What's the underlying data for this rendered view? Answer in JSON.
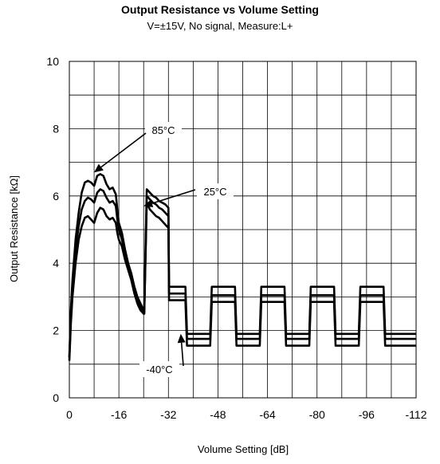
{
  "chart_data": {
    "type": "line",
    "title": "Output Resistance vs Volume Setting",
    "subtitle": "V=±15V, No signal, Measure:L+",
    "xlabel": "Volume Setting [dB]",
    "ylabel": "Output Resistance [kΩ]",
    "xlim": [
      0,
      -112
    ],
    "ylim": [
      0,
      10
    ],
    "x_ticks": [
      "0",
      "-16",
      "-32",
      "-48",
      "-64",
      "-80",
      "-96",
      "-112"
    ],
    "y_ticks": [
      "0",
      "2",
      "4",
      "6",
      "8",
      "10"
    ],
    "grid": true,
    "annotations": [
      {
        "text": "85°C",
        "points_to_x": -8,
        "points_to_y": 6.7
      },
      {
        "text": "25°C",
        "points_to_x": -24,
        "points_to_y": 5.7
      },
      {
        "text": "-40°C",
        "points_to_x": -36,
        "points_to_y": 1.9
      }
    ],
    "series": [
      {
        "name": "85°C",
        "x": [
          0,
          -0.5,
          -1,
          -2,
          -3,
          -4,
          -5,
          -6,
          -7,
          -8,
          -9,
          -10,
          -11,
          -12,
          -13,
          -14,
          -15,
          -15.5,
          -16,
          -17,
          -18,
          -19,
          -20,
          -21,
          -22,
          -23,
          -24,
          -24.2,
          -25,
          -26,
          -27,
          -28,
          -29,
          -30,
          -31,
          -32,
          -32.2,
          -33,
          -34,
          -35,
          -36,
          -37,
          -37.5,
          -38,
          -39,
          -40,
          -41,
          -42,
          -43,
          -44,
          -45,
          -45.5,
          -46,
          -47,
          -48,
          -49,
          -50,
          -51,
          -52,
          -53,
          -53.5,
          -54,
          -55,
          -56,
          -57,
          -58,
          -59,
          -60,
          -61,
          -61.5,
          -62,
          -63,
          -64,
          -65,
          -66,
          -67,
          -68,
          -69,
          -69.5,
          -70,
          -71,
          -72,
          -73,
          -74,
          -75,
          -76,
          -77,
          -77.5,
          -78,
          -79,
          -80,
          -81,
          -82,
          -83,
          -84,
          -85,
          -85.5,
          -86,
          -87,
          -88,
          -89,
          -90,
          -91,
          -92,
          -93,
          -93.5,
          -94,
          -95,
          -96,
          -97,
          -98,
          -99,
          -100,
          -101,
          -101.5,
          -102,
          -103,
          -104,
          -105,
          -106,
          -107,
          -108,
          -109,
          -109.5,
          -110,
          -111,
          -112
        ],
        "values": [
          1.2,
          2.6,
          3.5,
          4.7,
          5.5,
          6.1,
          6.4,
          6.45,
          6.4,
          6.3,
          6.6,
          6.65,
          6.6,
          6.35,
          6.2,
          6.25,
          6.05,
          5.6,
          5.2,
          4.9,
          4.4,
          4.0,
          3.7,
          3.3,
          3.0,
          2.8,
          2.6,
          2.65,
          6.2,
          6.1,
          6.0,
          5.95,
          5.85,
          5.8,
          5.75,
          5.65,
          3.3,
          3.3,
          3.3,
          3.3,
          3.3,
          3.3,
          3.3,
          1.9,
          1.9,
          1.9,
          1.9,
          1.9,
          1.9,
          1.9,
          1.9,
          1.9,
          3.3,
          3.3,
          3.3,
          3.3,
          3.3,
          3.3,
          3.3,
          3.3,
          3.3,
          1.9,
          1.9,
          1.9,
          1.9,
          1.9,
          1.9,
          1.9,
          1.9,
          1.9,
          3.3,
          3.3,
          3.3,
          3.3,
          3.3,
          3.3,
          3.3,
          3.3,
          3.3,
          1.9,
          1.9,
          1.9,
          1.9,
          1.9,
          1.9,
          1.9,
          1.9,
          1.9,
          3.3,
          3.3,
          3.3,
          3.3,
          3.3,
          3.3,
          3.3,
          3.3,
          3.3,
          1.9,
          1.9,
          1.9,
          1.9,
          1.9,
          1.9,
          1.9,
          1.9,
          1.9,
          3.3,
          3.3,
          3.3,
          3.3,
          3.3,
          3.3,
          3.3,
          3.3,
          3.3,
          1.9,
          1.9,
          1.9,
          1.9,
          1.9,
          1.9,
          1.9,
          1.9,
          1.9,
          1.9,
          1.9,
          1.9
        ]
      },
      {
        "name": "25°C",
        "x": [
          0,
          -0.5,
          -1,
          -2,
          -3,
          -4,
          -5,
          -6,
          -7,
          -8,
          -9,
          -10,
          -11,
          -12,
          -13,
          -14,
          -15,
          -15.5,
          -16,
          -17,
          -18,
          -19,
          -20,
          -21,
          -22,
          -23,
          -24,
          -24.2,
          -25,
          -26,
          -27,
          -28,
          -29,
          -30,
          -31,
          -32,
          -32.2,
          -33,
          -34,
          -35,
          -36,
          -37,
          -37.5,
          -38,
          -39,
          -40,
          -41,
          -42,
          -43,
          -44,
          -45,
          -45.5,
          -46,
          -47,
          -48,
          -49,
          -50,
          -51,
          -52,
          -53,
          -53.5,
          -54,
          -55,
          -56,
          -57,
          -58,
          -59,
          -60,
          -61,
          -61.5,
          -62,
          -63,
          -64,
          -65,
          -66,
          -67,
          -68,
          -69,
          -69.5,
          -70,
          -71,
          -72,
          -73,
          -74,
          -75,
          -76,
          -77,
          -77.5,
          -78,
          -79,
          -80,
          -81,
          -82,
          -83,
          -84,
          -85,
          -85.5,
          -86,
          -87,
          -88,
          -89,
          -90,
          -91,
          -92,
          -93,
          -93.5,
          -94,
          -95,
          -96,
          -97,
          -98,
          -99,
          -100,
          -101,
          -101.5,
          -102,
          -103,
          -104,
          -105,
          -106,
          -107,
          -108,
          -109,
          -109.5,
          -110,
          -111,
          -112
        ],
        "values": [
          1.2,
          2.4,
          3.3,
          4.4,
          5.1,
          5.6,
          5.85,
          5.95,
          5.9,
          5.8,
          6.1,
          6.2,
          6.15,
          5.95,
          5.8,
          5.85,
          5.7,
          5.3,
          5.0,
          4.7,
          4.3,
          3.9,
          3.6,
          3.2,
          2.9,
          2.7,
          2.5,
          2.55,
          6.0,
          5.9,
          5.8,
          5.75,
          5.65,
          5.6,
          5.5,
          5.4,
          3.1,
          3.1,
          3.1,
          3.1,
          3.1,
          3.1,
          3.1,
          1.75,
          1.75,
          1.75,
          1.75,
          1.75,
          1.75,
          1.75,
          1.75,
          1.75,
          3.05,
          3.05,
          3.05,
          3.05,
          3.05,
          3.05,
          3.05,
          3.05,
          3.05,
          1.75,
          1.75,
          1.75,
          1.75,
          1.75,
          1.75,
          1.75,
          1.75,
          1.75,
          3.05,
          3.05,
          3.05,
          3.05,
          3.05,
          3.05,
          3.05,
          3.05,
          3.05,
          1.75,
          1.75,
          1.75,
          1.75,
          1.75,
          1.75,
          1.75,
          1.75,
          1.75,
          3.05,
          3.05,
          3.05,
          3.05,
          3.05,
          3.05,
          3.05,
          3.05,
          3.05,
          1.75,
          1.75,
          1.75,
          1.75,
          1.75,
          1.75,
          1.75,
          1.75,
          1.75,
          3.05,
          3.05,
          3.05,
          3.05,
          3.05,
          3.05,
          3.05,
          3.05,
          3.05,
          1.75,
          1.75,
          1.75,
          1.75,
          1.75,
          1.75,
          1.75,
          1.75,
          1.75,
          1.75,
          1.75,
          1.75
        ]
      },
      {
        "name": "-40°C",
        "x": [
          0,
          -0.5,
          -1,
          -2,
          -3,
          -4,
          -5,
          -6,
          -7,
          -8,
          -9,
          -10,
          -11,
          -12,
          -13,
          -14,
          -15,
          -15.5,
          -16,
          -17,
          -18,
          -19,
          -20,
          -21,
          -22,
          -23,
          -24,
          -24.2,
          -25,
          -26,
          -27,
          -28,
          -29,
          -30,
          -31,
          -32,
          -32.2,
          -33,
          -34,
          -35,
          -36,
          -37,
          -37.5,
          -38,
          -39,
          -40,
          -41,
          -42,
          -43,
          -44,
          -45,
          -45.5,
          -46,
          -47,
          -48,
          -49,
          -50,
          -51,
          -52,
          -53,
          -53.5,
          -54,
          -55,
          -56,
          -57,
          -58,
          -59,
          -60,
          -61,
          -61.5,
          -62,
          -63,
          -64,
          -65,
          -66,
          -67,
          -68,
          -69,
          -69.5,
          -70,
          -71,
          -72,
          -73,
          -74,
          -75,
          -76,
          -77,
          -77.5,
          -78,
          -79,
          -80,
          -81,
          -82,
          -83,
          -84,
          -85,
          -85.5,
          -86,
          -87,
          -88,
          -89,
          -90,
          -91,
          -92,
          -93,
          -93.5,
          -94,
          -95,
          -96,
          -97,
          -98,
          -99,
          -100,
          -101,
          -101.5,
          -102,
          -103,
          -104,
          -105,
          -106,
          -107,
          -108,
          -109,
          -109.5,
          -110,
          -111,
          -112
        ],
        "values": [
          1.1,
          2.2,
          3.0,
          4.0,
          4.7,
          5.1,
          5.35,
          5.4,
          5.3,
          5.2,
          5.5,
          5.65,
          5.6,
          5.4,
          5.3,
          5.35,
          5.2,
          4.9,
          4.7,
          4.5,
          4.1,
          3.8,
          3.5,
          3.1,
          2.8,
          2.6,
          2.5,
          2.5,
          5.8,
          5.6,
          5.5,
          5.4,
          5.35,
          5.25,
          5.15,
          5.05,
          2.9,
          2.9,
          2.9,
          2.9,
          2.9,
          2.9,
          2.9,
          1.55,
          1.55,
          1.55,
          1.55,
          1.55,
          1.55,
          1.55,
          1.55,
          1.55,
          2.85,
          2.85,
          2.85,
          2.85,
          2.85,
          2.85,
          2.85,
          2.85,
          2.85,
          1.55,
          1.55,
          1.55,
          1.55,
          1.55,
          1.55,
          1.55,
          1.55,
          1.55,
          2.85,
          2.85,
          2.85,
          2.85,
          2.85,
          2.85,
          2.85,
          2.85,
          2.85,
          1.55,
          1.55,
          1.55,
          1.55,
          1.55,
          1.55,
          1.55,
          1.55,
          1.55,
          2.85,
          2.85,
          2.85,
          2.85,
          2.85,
          2.85,
          2.85,
          2.85,
          2.85,
          1.55,
          1.55,
          1.55,
          1.55,
          1.55,
          1.55,
          1.55,
          1.55,
          1.55,
          2.85,
          2.85,
          2.85,
          2.85,
          2.85,
          2.85,
          2.85,
          2.85,
          2.85,
          1.55,
          1.55,
          1.55,
          1.55,
          1.55,
          1.55,
          1.55,
          1.55,
          1.55,
          1.55,
          1.55,
          1.55
        ]
      }
    ]
  }
}
